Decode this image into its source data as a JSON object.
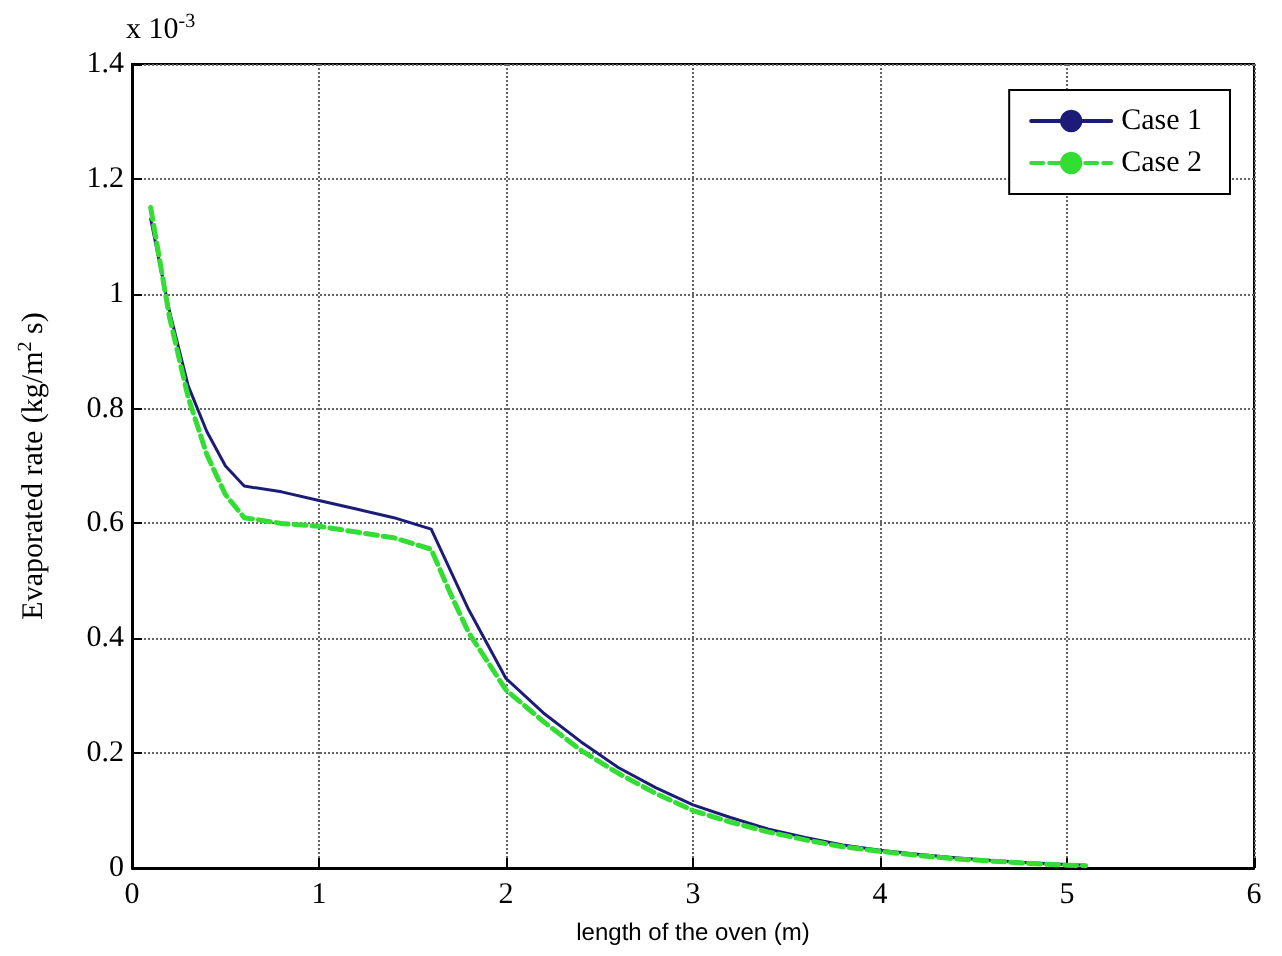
{
  "chart_data": {
    "type": "line",
    "xlabel": "length of the oven (m)",
    "ylabel": "Evaporated rate (kg/m$^{2}$ s)",
    "annotations": [
      "x 10$^{-3}$"
    ],
    "x": [
      0.1,
      0.2,
      0.3,
      0.4,
      0.5,
      0.6,
      0.8,
      1.0,
      1.2,
      1.4,
      1.6,
      1.7,
      1.8,
      1.9,
      2.0,
      2.2,
      2.4,
      2.6,
      2.8,
      3.0,
      3.2,
      3.4,
      3.6,
      3.8,
      4.0,
      4.2,
      4.4,
      4.6,
      4.8,
      5.0,
      5.1
    ],
    "series": [
      {
        "name": "Case 1",
        "color": "#1c1c78",
        "line_style": "solid",
        "values": [
          1.13,
          0.97,
          0.84,
          0.76,
          0.7,
          0.665,
          0.655,
          0.64,
          0.625,
          0.61,
          0.59,
          0.52,
          0.45,
          0.39,
          0.33,
          0.27,
          0.22,
          0.175,
          0.14,
          0.11,
          0.088,
          0.068,
          0.053,
          0.04,
          0.031,
          0.024,
          0.018,
          0.013,
          0.009,
          0.006,
          0.005
        ]
      },
      {
        "name": "Case 2",
        "color": "#33dd33",
        "line_style": "dashed",
        "values": [
          1.15,
          0.96,
          0.82,
          0.72,
          0.65,
          0.61,
          0.6,
          0.595,
          0.585,
          0.575,
          0.555,
          0.48,
          0.41,
          0.36,
          0.31,
          0.255,
          0.205,
          0.165,
          0.13,
          0.1,
          0.08,
          0.063,
          0.049,
          0.037,
          0.029,
          0.022,
          0.016,
          0.012,
          0.008,
          0.005,
          0.004
        ]
      }
    ],
    "xlim": [
      0,
      6
    ],
    "xticks": [
      0,
      1,
      2,
      3,
      4,
      5,
      6
    ],
    "ylim": [
      0,
      1.4
    ],
    "yticks": [
      0,
      0.2,
      0.4,
      0.6,
      0.8,
      1,
      1.2,
      1.4
    ],
    "grid": true,
    "legend": "top right",
    "marker": "none"
  }
}
